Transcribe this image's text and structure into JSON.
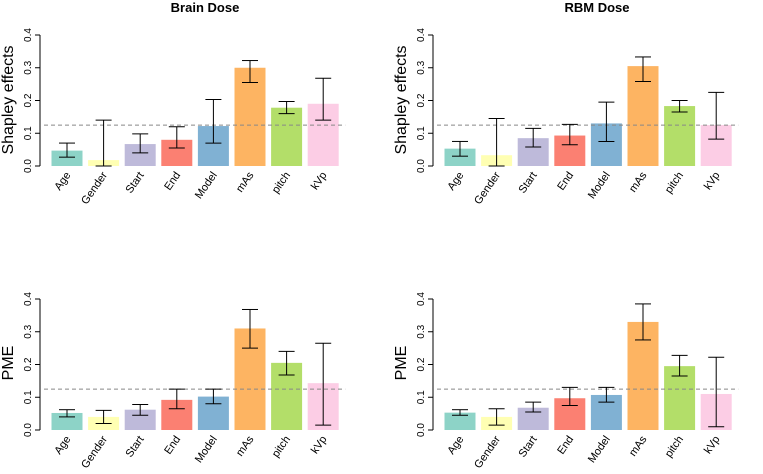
{
  "chart_data": [
    {
      "type": "bar",
      "title": "Brain Dose",
      "ylabel": "Shapley effects",
      "xlabel": "",
      "ylim": [
        0,
        0.4
      ],
      "yticks": [
        "0.0",
        "0.1",
        "0.2",
        "0.3",
        "0.4"
      ],
      "reference_line": 0.125,
      "categories": [
        "Age",
        "Gender",
        "Start",
        "End",
        "Model",
        "mAs",
        "pitch",
        "kVp"
      ],
      "values": [
        0.047,
        0.018,
        0.067,
        0.08,
        0.122,
        0.3,
        0.178,
        0.19
      ],
      "error_low": [
        0.027,
        0.0,
        0.04,
        0.055,
        0.07,
        0.255,
        0.16,
        0.14
      ],
      "error_high": [
        0.07,
        0.14,
        0.098,
        0.12,
        0.203,
        0.322,
        0.197,
        0.268
      ],
      "colors": [
        "#8dd3c7",
        "#ffffb3",
        "#bebada",
        "#fb8072",
        "#80b1d3",
        "#fdb462",
        "#b3de69",
        "#fccde5"
      ]
    },
    {
      "type": "bar",
      "title": "RBM Dose",
      "ylabel": "Shapley effects",
      "xlabel": "",
      "ylim": [
        0,
        0.4
      ],
      "yticks": [
        "0.0",
        "0.1",
        "0.2",
        "0.3",
        "0.4"
      ],
      "reference_line": 0.125,
      "categories": [
        "Age",
        "Gender",
        "Start",
        "End",
        "Model",
        "mAs",
        "pitch",
        "kVp"
      ],
      "values": [
        0.053,
        0.033,
        0.085,
        0.093,
        0.13,
        0.305,
        0.183,
        0.125
      ],
      "error_low": [
        0.03,
        0.0,
        0.058,
        0.065,
        0.075,
        0.258,
        0.165,
        0.082
      ],
      "error_high": [
        0.075,
        0.145,
        0.115,
        0.127,
        0.195,
        0.333,
        0.2,
        0.225
      ],
      "colors": [
        "#8dd3c7",
        "#ffffb3",
        "#bebada",
        "#fb8072",
        "#80b1d3",
        "#fdb462",
        "#b3de69",
        "#fccde5"
      ]
    },
    {
      "type": "bar",
      "title": "",
      "ylabel": "PME",
      "xlabel": "",
      "ylim": [
        0,
        0.4
      ],
      "yticks": [
        "0.0",
        "0.1",
        "0.2",
        "0.3",
        "0.4"
      ],
      "reference_line": 0.125,
      "categories": [
        "Age",
        "Gender",
        "Start",
        "End",
        "Model",
        "mAs",
        "pitch",
        "kVp"
      ],
      "values": [
        0.052,
        0.04,
        0.062,
        0.092,
        0.102,
        0.31,
        0.205,
        0.143
      ],
      "error_low": [
        0.04,
        0.02,
        0.045,
        0.065,
        0.08,
        0.25,
        0.168,
        0.015
      ],
      "error_high": [
        0.062,
        0.06,
        0.078,
        0.125,
        0.125,
        0.368,
        0.24,
        0.265
      ],
      "colors": [
        "#8dd3c7",
        "#ffffb3",
        "#bebada",
        "#fb8072",
        "#80b1d3",
        "#fdb462",
        "#b3de69",
        "#fccde5"
      ]
    },
    {
      "type": "bar",
      "title": "",
      "ylabel": "PME",
      "xlabel": "",
      "ylim": [
        0,
        0.4
      ],
      "yticks": [
        "0.0",
        "0.1",
        "0.2",
        "0.3",
        "0.4"
      ],
      "reference_line": 0.125,
      "categories": [
        "Age",
        "Gender",
        "Start",
        "End",
        "Model",
        "mAs",
        "pitch",
        "kVp"
      ],
      "values": [
        0.053,
        0.04,
        0.068,
        0.097,
        0.107,
        0.33,
        0.195,
        0.11
      ],
      "error_low": [
        0.045,
        0.015,
        0.055,
        0.075,
        0.085,
        0.275,
        0.165,
        0.01
      ],
      "error_high": [
        0.062,
        0.065,
        0.085,
        0.13,
        0.13,
        0.385,
        0.228,
        0.222
      ],
      "colors": [
        "#8dd3c7",
        "#ffffb3",
        "#bebada",
        "#fb8072",
        "#80b1d3",
        "#fdb462",
        "#b3de69",
        "#fccde5"
      ]
    }
  ]
}
